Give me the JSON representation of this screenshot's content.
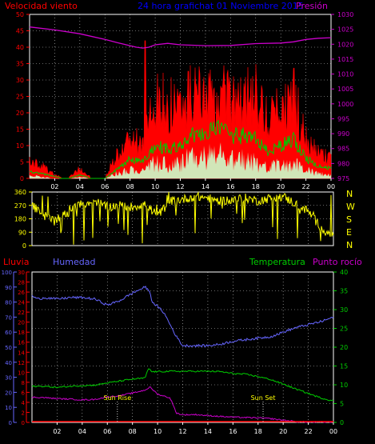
{
  "colors": {
    "wind": "#ff0000",
    "gust_fill": "#ff0000",
    "avg_line": "#00c800",
    "low_fill": "#ccffcc",
    "pressure": "#cc00cc",
    "direction": "#ffff00",
    "rain": "#ff0000",
    "humidity": "#6666ff",
    "temperature": "#00cc00",
    "dewpoint": "#cc00cc",
    "axis_left": "#ff0000",
    "axis_hum": "#6666ff",
    "axis_temp": "#00cc00",
    "title": "#0000ff",
    "grid": "#ffffff",
    "annot": "#ffff00"
  },
  "header": {
    "wind_label": "Velocidad viento",
    "title": "24 hora grafichat 01 Noviembre 2015",
    "pressure_label": "Presión"
  },
  "lower_header": {
    "rain_label": "Lluvia",
    "humidity_label": "Humedad",
    "temperature_label": "Temperatura",
    "dewpoint_label": "Punto rocío"
  },
  "compass": [
    "N",
    "W",
    "S",
    "E",
    "N"
  ],
  "chart_data": [
    {
      "type": "area",
      "name": "wind",
      "x_ticks": [
        "02",
        "04",
        "06",
        "08",
        "10",
        "12",
        "14",
        "16",
        "18",
        "20",
        "22",
        "00"
      ],
      "xlim": [
        0,
        24
      ],
      "ylim_left": [
        0,
        50
      ],
      "yticks_left": [
        0,
        5,
        10,
        15,
        20,
        25,
        30,
        35,
        40,
        45,
        50
      ],
      "ylim_right": [
        975,
        1030
      ],
      "yticks_right": [
        975,
        980,
        985,
        990,
        995,
        1000,
        1005,
        1010,
        1015,
        1020,
        1025,
        1030
      ],
      "gust_hourly": [
        5,
        4,
        1,
        0,
        3,
        0,
        0,
        8,
        13,
        10,
        27,
        24,
        22,
        28,
        24,
        27,
        24,
        25,
        26,
        18,
        22,
        26,
        12,
        8,
        6
      ],
      "avg_hourly": [
        2,
        1.5,
        0.5,
        0,
        1,
        0,
        0,
        3,
        6,
        5,
        10,
        9,
        10,
        13,
        14,
        15,
        13,
        13,
        12,
        8,
        10,
        12,
        6,
        4,
        3
      ],
      "low_hourly": [
        1,
        0.5,
        0,
        0,
        0.5,
        0,
        0,
        2,
        3,
        3,
        6,
        5,
        6,
        8,
        8,
        9,
        7,
        7,
        6,
        4,
        5,
        6,
        3,
        2,
        1
      ],
      "pressure": {
        "x": [
          0,
          2,
          4,
          6,
          7,
          8,
          8.5,
          9,
          9.5,
          10,
          11,
          12,
          14,
          16,
          18,
          20,
          21,
          22,
          23,
          24
        ],
        "y": [
          1025.8,
          1024.8,
          1023.5,
          1021.6,
          1020.5,
          1019.5,
          1019.0,
          1018.7,
          1019.0,
          1019.8,
          1020.3,
          1019.8,
          1019.5,
          1019.6,
          1020.2,
          1020.4,
          1020.8,
          1021.6,
          1022.0,
          1022.2
        ]
      },
      "peak": {
        "x": 9.2,
        "y": 42
      }
    },
    {
      "type": "scatter",
      "name": "wind_direction",
      "xlim": [
        0,
        24
      ],
      "ylim": [
        0,
        360
      ],
      "yticks": [
        0,
        90,
        180,
        270,
        360
      ],
      "dir_hourly": [
        270,
        200,
        180,
        230,
        280,
        300,
        260,
        270,
        260,
        280,
        200,
        300,
        310,
        330,
        320,
        300,
        310,
        320,
        300,
        320,
        330,
        280,
        230,
        120,
        60
      ]
    },
    {
      "type": "line",
      "name": "temp_hum",
      "xlim": [
        0,
        24
      ],
      "ylim_left": [
        0,
        30
      ],
      "yticks_rain": [
        0,
        2,
        4,
        6,
        8,
        10,
        12,
        14,
        16,
        18,
        20,
        22,
        24,
        26,
        28,
        30
      ],
      "ylim_hum": [
        0,
        100
      ],
      "yticks_hum": [
        0,
        10,
        20,
        30,
        40,
        50,
        60,
        70,
        80,
        90,
        100
      ],
      "ylim_right": [
        0,
        40
      ],
      "yticks_right": [
        0,
        5,
        10,
        15,
        20,
        25,
        30,
        35,
        40
      ],
      "humidity": {
        "x": [
          0,
          0.5,
          1,
          2,
          3,
          4,
          5,
          6,
          7,
          8,
          8.5,
          9,
          9.3,
          9.6,
          10,
          10.5,
          11,
          11.5,
          12,
          13,
          14,
          15,
          16,
          17,
          18,
          19,
          20,
          21,
          22,
          23,
          24
        ],
        "y": [
          84,
          82,
          83,
          82,
          83,
          83,
          82,
          78,
          81,
          86,
          88,
          90,
          88,
          80,
          77,
          73,
          65,
          57,
          51,
          51,
          51,
          52,
          54,
          55,
          56,
          57,
          60,
          63,
          65,
          67,
          70
        ]
      },
      "temperature": {
        "x": [
          0,
          1,
          2,
          3,
          4,
          5,
          6,
          7,
          8,
          9,
          9.3,
          9.5,
          10,
          11,
          12,
          13,
          14,
          15,
          16,
          17,
          18,
          19,
          20,
          21,
          22,
          23,
          24
        ],
        "y": [
          9.6,
          9.6,
          9.3,
          9.6,
          9.8,
          9.9,
          10.5,
          11.0,
          11.5,
          11.8,
          14.5,
          13.5,
          13.5,
          13.6,
          13.6,
          13.6,
          13.6,
          13.5,
          13.0,
          12.8,
          12.2,
          11.4,
          10.2,
          8.9,
          7.7,
          6.5,
          5.7
        ]
      },
      "dewpoint": {
        "x": [
          0,
          1,
          2,
          3,
          4,
          5,
          6,
          7,
          8,
          9,
          9.4,
          10,
          11,
          11.5,
          12,
          13,
          14,
          15,
          16,
          17,
          18,
          19,
          20,
          21,
          22,
          23,
          24
        ],
        "y": [
          6.7,
          6.6,
          6.3,
          6.2,
          6.0,
          6.1,
          6.8,
          7.1,
          7.8,
          8.6,
          9.4,
          7.5,
          6.5,
          2.5,
          2.0,
          2.1,
          1.8,
          1.6,
          1.4,
          1.3,
          1.2,
          1.0,
          0.6,
          0.2,
          0.1,
          0.1,
          0.1
        ]
      },
      "rain": {
        "x": [
          0,
          24
        ],
        "y": [
          0,
          0
        ]
      },
      "annotations": [
        {
          "label": "Sun Rise",
          "x": 6.8
        },
        {
          "label": "Sun Set",
          "x": 18.4
        }
      ]
    }
  ]
}
